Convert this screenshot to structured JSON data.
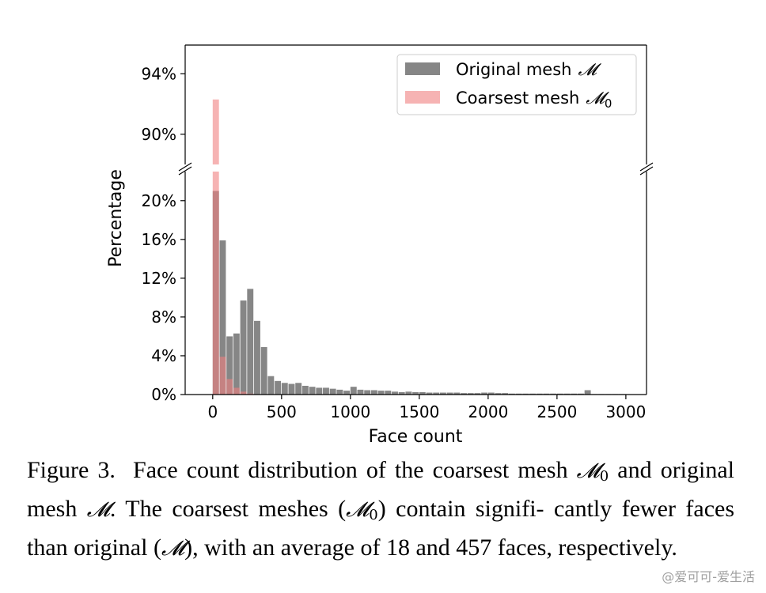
{
  "chart_data": {
    "type": "bar",
    "ylabel": "Percentage",
    "xlabel": "Face count",
    "x_ticks": [
      "0",
      "500",
      "1000",
      "1500",
      "2000",
      "2500",
      "3000"
    ],
    "x_tick_values": [
      0,
      500,
      1000,
      1500,
      2000,
      2500,
      3000
    ],
    "xlim": [
      -200,
      3150
    ],
    "y_ticks_lower": [
      "0%",
      "4%",
      "8%",
      "12%",
      "16%",
      "20%"
    ],
    "y_tick_values_lower": [
      0,
      4,
      8,
      12,
      16,
      20
    ],
    "ylim_lower": [
      0,
      23
    ],
    "y_ticks_upper": [
      "90%",
      "94%"
    ],
    "y_tick_values_upper": [
      90,
      94
    ],
    "ylim_upper": [
      88,
      95.9
    ],
    "broken_y_axis": true,
    "bin_width": 50,
    "legend_position": "upper-right",
    "series": [
      {
        "name": "Original mesh",
        "name_math": "𝓜",
        "color": "#808080",
        "x": [
          0,
          50,
          100,
          150,
          200,
          250,
          300,
          350,
          400,
          450,
          500,
          550,
          600,
          650,
          700,
          750,
          800,
          850,
          900,
          950,
          1000,
          1050,
          1100,
          1150,
          1200,
          1250,
          1300,
          1350,
          1400,
          1450,
          1500,
          1550,
          1600,
          1650,
          1700,
          1750,
          1800,
          1850,
          1900,
          1950,
          2000,
          2050,
          2100,
          2150,
          2200,
          2250,
          2300,
          2350,
          2400,
          2450,
          2500,
          2550,
          2600,
          2650,
          2700,
          2750,
          2800,
          2850,
          2900,
          2950
        ],
        "values": [
          21.0,
          15.9,
          6.0,
          6.3,
          9.7,
          10.9,
          7.6,
          4.9,
          1.9,
          1.4,
          1.2,
          1.1,
          1.2,
          0.9,
          0.8,
          0.7,
          0.7,
          0.6,
          0.5,
          0.4,
          0.8,
          0.5,
          0.45,
          0.45,
          0.4,
          0.4,
          0.3,
          0.25,
          0.3,
          0.25,
          0.25,
          0.2,
          0.2,
          0.2,
          0.2,
          0.2,
          0.15,
          0.15,
          0.15,
          0.2,
          0.2,
          0.15,
          0.15,
          0.1,
          0.1,
          0.1,
          0.1,
          0.1,
          0.1,
          0.1,
          0.1,
          0.1,
          0.1,
          0.1,
          0.45,
          0.05,
          0.05,
          0.05,
          0.05,
          0.05
        ]
      },
      {
        "name": "Coarsest mesh",
        "name_math": "𝓜",
        "name_sub": "0",
        "color": "#f08080",
        "x": [
          0,
          50,
          100,
          150,
          200,
          250
        ],
        "values": [
          92.3,
          3.9,
          1.6,
          0.7,
          0.3,
          0.1
        ]
      }
    ]
  },
  "caption": {
    "figure_label": "Figure 3.",
    "line1_a": "Face count distribution of the coarsest mesh",
    "line1_b": "and",
    "line2_a": "original mesh",
    "line2_b": ". The coarsest meshes (",
    "line2_c": ") contain signifi-",
    "line3_a": "cantly fewer faces than original (",
    "line3_b": "), with an average of 18 and",
    "line4": "457 faces, respectively.",
    "math_M": "𝓜",
    "sub_0": "0"
  },
  "watermark": "@爱可可-爱生活"
}
